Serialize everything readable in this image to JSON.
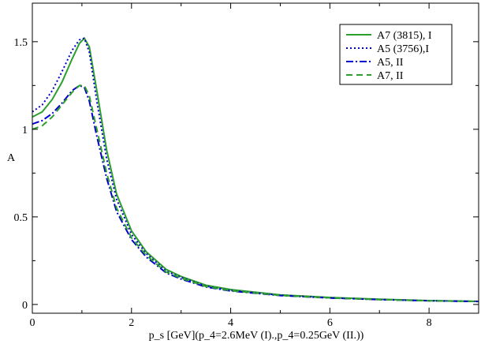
{
  "chart_data": {
    "type": "line",
    "xlabel": "p_s [GeV](p_4=2.6MeV (I).,p_4=0.25GeV (II.))",
    "ylabel": "A",
    "xlim": [
      0,
      9
    ],
    "ylim": [
      -0.05,
      1.72
    ],
    "x_ticks": [
      0,
      2,
      4,
      6,
      8
    ],
    "x_tick_labels": [
      "0",
      "2",
      "4",
      "6",
      "8"
    ],
    "y_ticks": [
      0,
      0.5,
      1,
      1.5
    ],
    "y_tick_labels": [
      "0",
      "0.5",
      "1",
      "1.5"
    ],
    "grid": false,
    "legend_position": "top-right",
    "series": [
      {
        "name": "A7 (3815), I",
        "color": "#2ca02c",
        "style": "solid",
        "x": [
          0,
          0.2,
          0.4,
          0.6,
          0.8,
          0.95,
          1.05,
          1.15,
          1.3,
          1.5,
          1.7,
          2.0,
          2.3,
          2.7,
          3.0,
          3.5,
          4.0,
          5.0,
          6.0,
          7.0,
          8.0,
          9.0
        ],
        "y": [
          1.07,
          1.1,
          1.17,
          1.27,
          1.4,
          1.49,
          1.52,
          1.47,
          1.22,
          0.88,
          0.63,
          0.42,
          0.3,
          0.2,
          0.16,
          0.11,
          0.085,
          0.055,
          0.04,
          0.03,
          0.022,
          0.018
        ]
      },
      {
        "name": "A5 (3756),I",
        "color": "#0000cc",
        "style": "dotted",
        "x": [
          0,
          0.2,
          0.4,
          0.6,
          0.8,
          0.95,
          1.05,
          1.15,
          1.3,
          1.5,
          1.7,
          2.0,
          2.3,
          2.7,
          3.0,
          3.5,
          4.0,
          5.0,
          6.0,
          7.0,
          8.0,
          9.0
        ],
        "y": [
          1.1,
          1.14,
          1.22,
          1.33,
          1.45,
          1.51,
          1.52,
          1.44,
          1.16,
          0.83,
          0.6,
          0.4,
          0.29,
          0.19,
          0.155,
          0.105,
          0.08,
          0.053,
          0.038,
          0.028,
          0.021,
          0.017
        ]
      },
      {
        "name": "A5, II",
        "color": "#0000cc",
        "style": "dashdot",
        "x": [
          0,
          0.2,
          0.4,
          0.6,
          0.8,
          0.95,
          1.05,
          1.15,
          1.3,
          1.5,
          1.7,
          2.0,
          2.3,
          2.7,
          3.0,
          3.5,
          4.0,
          5.0,
          6.0,
          7.0,
          8.0,
          9.0
        ],
        "y": [
          1.03,
          1.05,
          1.09,
          1.15,
          1.22,
          1.25,
          1.24,
          1.16,
          0.96,
          0.72,
          0.53,
          0.37,
          0.27,
          0.18,
          0.145,
          0.1,
          0.077,
          0.051,
          0.037,
          0.028,
          0.021,
          0.017
        ]
      },
      {
        "name": "A7, II",
        "color": "#2ca02c",
        "style": "dashed",
        "x": [
          0,
          0.2,
          0.4,
          0.6,
          0.8,
          0.95,
          1.05,
          1.15,
          1.3,
          1.5,
          1.7,
          2.0,
          2.3,
          2.7,
          3.0,
          3.5,
          4.0,
          5.0,
          6.0,
          7.0,
          8.0,
          9.0
        ],
        "y": [
          1.0,
          1.02,
          1.07,
          1.14,
          1.21,
          1.25,
          1.25,
          1.19,
          1.0,
          0.75,
          0.55,
          0.38,
          0.28,
          0.185,
          0.15,
          0.103,
          0.079,
          0.052,
          0.038,
          0.028,
          0.021,
          0.017
        ]
      }
    ]
  }
}
